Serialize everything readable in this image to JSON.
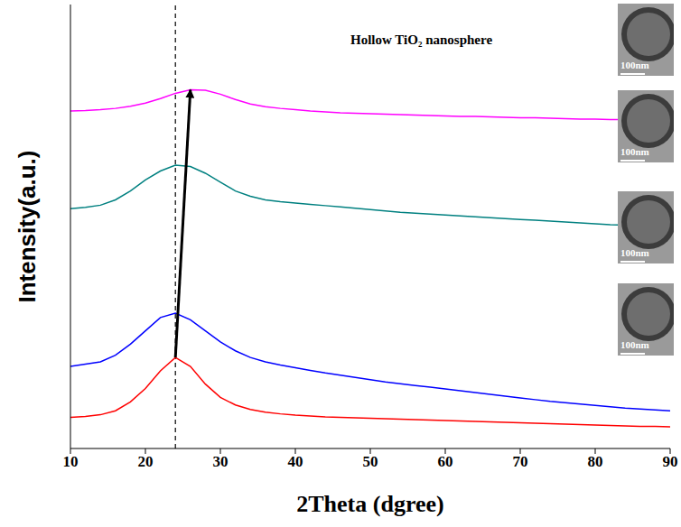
{
  "chart_data": {
    "type": "line",
    "x_label": "2Theta (dgree)",
    "y_label": "Intensity(a.u.)",
    "annotation": "Hollow TiO₂ nanosphere",
    "inset_labels": [
      "100nm",
      "100nm",
      "100nm",
      "100nm"
    ],
    "reference_line": 24,
    "x": [
      10,
      12,
      14,
      16,
      18,
      20,
      22,
      24,
      26,
      28,
      30,
      32,
      34,
      36,
      38,
      40,
      42,
      44,
      46,
      48,
      50,
      52,
      54,
      56,
      58,
      60,
      62,
      64,
      66,
      68,
      70,
      72,
      74,
      76,
      78,
      80,
      82,
      84,
      86,
      88,
      90
    ],
    "series": [
      {
        "color": "#ff00ff",
        "values": [
          76,
          76.1,
          76.3,
          76.6,
          77.1,
          77.8,
          78.8,
          80,
          80.8,
          80.7,
          79.8,
          78.6,
          77.6,
          77,
          76.6,
          76.3,
          76,
          75.8,
          75.6,
          75.5,
          75.4,
          75.3,
          75.2,
          75.1,
          75,
          74.9,
          74.8,
          74.8,
          74.7,
          74.6,
          74.5,
          74.5,
          74.4,
          74.3,
          74.2,
          74.2,
          74.1,
          74.1,
          74,
          74,
          74
        ]
      },
      {
        "color": "#008080",
        "values": [
          54,
          54.3,
          54.8,
          56,
          58,
          60.5,
          62.5,
          63.8,
          63.5,
          62,
          60,
          58,
          56.8,
          56,
          55.6,
          55.3,
          55,
          54.7,
          54.4,
          54.1,
          53.8,
          53.5,
          53.2,
          53,
          52.8,
          52.6,
          52.4,
          52.2,
          52,
          51.8,
          51.6,
          51.4,
          51.2,
          51,
          50.8,
          50.6,
          50.4,
          50.3,
          50.2,
          50.1,
          50
        ]
      },
      {
        "color": "#0000ff",
        "values": [
          18.5,
          19,
          19.5,
          21,
          23.5,
          26.5,
          29.5,
          30.5,
          29,
          26.5,
          24,
          22,
          20.5,
          19.5,
          18.8,
          18.2,
          17.6,
          17,
          16.5,
          16,
          15.5,
          15,
          14.6,
          14.2,
          13.8,
          13.4,
          13,
          12.6,
          12.2,
          11.8,
          11.4,
          11,
          10.6,
          10.3,
          10,
          9.7,
          9.4,
          9.1,
          8.9,
          8.7,
          8.5
        ]
      },
      {
        "color": "#ff0000",
        "values": [
          7,
          7.2,
          7.6,
          8.5,
          10.5,
          13.5,
          17.5,
          20.5,
          18.5,
          14.5,
          11.5,
          9.8,
          8.8,
          8.2,
          7.8,
          7.5,
          7.3,
          7.1,
          7,
          6.9,
          6.8,
          6.7,
          6.6,
          6.5,
          6.4,
          6.3,
          6.2,
          6.1,
          6,
          5.9,
          5.8,
          5.7,
          5.6,
          5.5,
          5.4,
          5.3,
          5.2,
          5.1,
          5,
          5,
          4.9
        ]
      }
    ],
    "xlim": [
      10,
      90
    ],
    "xticks": [
      10,
      20,
      30,
      40,
      50,
      60,
      70,
      80,
      90
    ],
    "ylim": [
      0,
      100
    ],
    "tick_labels": "x",
    "grid": false
  }
}
